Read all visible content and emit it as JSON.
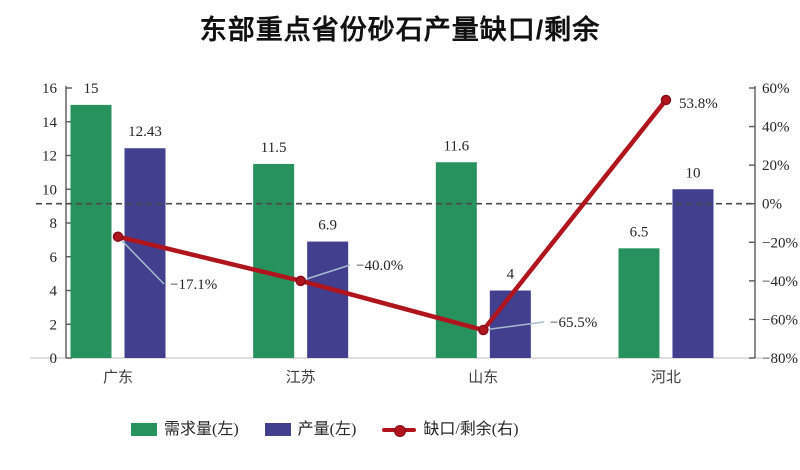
{
  "chart_data": {
    "type": "bar+line",
    "title": "东部重点省份砂石产量缺口/剩余",
    "categories": [
      "广东",
      "江苏",
      "山东",
      "河北"
    ],
    "series": [
      {
        "name": "需求量(左)",
        "kind": "bar",
        "axis": "left",
        "color": "#28925e",
        "values": [
          15,
          11.5,
          11.6,
          6.5
        ],
        "labels": [
          "15",
          "11.5",
          "11.6",
          "6.5"
        ]
      },
      {
        "name": "产量(左)",
        "kind": "bar",
        "axis": "left",
        "color": "#413f8e",
        "values": [
          12.43,
          6.9,
          4,
          10
        ],
        "labels": [
          "12.43",
          "6.9",
          "4",
          "10"
        ]
      },
      {
        "name": "缺口/剩余(右)",
        "kind": "line",
        "axis": "right",
        "color": "#b0141c",
        "values": [
          -17.1,
          -40.0,
          -65.5,
          53.8
        ],
        "labels": [
          "−17.1%",
          "−40.0%",
          "−65.5%",
          "53.8%"
        ]
      }
    ],
    "left_axis": {
      "min": 0,
      "max": 16,
      "step": 2,
      "tick_labels": [
        "0",
        "2",
        "4",
        "6",
        "8",
        "10",
        "12",
        "14",
        "16"
      ]
    },
    "right_axis": {
      "min": -80,
      "max": 60,
      "step": 20,
      "tick_labels": [
        "−80%",
        "−60%",
        "−40%",
        "−20%",
        "0%",
        "20%",
        "40%",
        "60%"
      ]
    },
    "zero_line": {
      "axis": "right",
      "value": 0,
      "style": "dashed"
    },
    "legend_position": "bottom",
    "grid": "off",
    "colors": {
      "demand_bar": "#28925e",
      "production_bar": "#413f8e",
      "gap_line": "#b0141c",
      "marker_edge": "#86101a",
      "zero_dash": "#4a4a4a",
      "axis_line": "#5a5a5a",
      "baseline": "#c9c9c9",
      "leader_line": "#a8bccf",
      "text": "#262626"
    }
  }
}
